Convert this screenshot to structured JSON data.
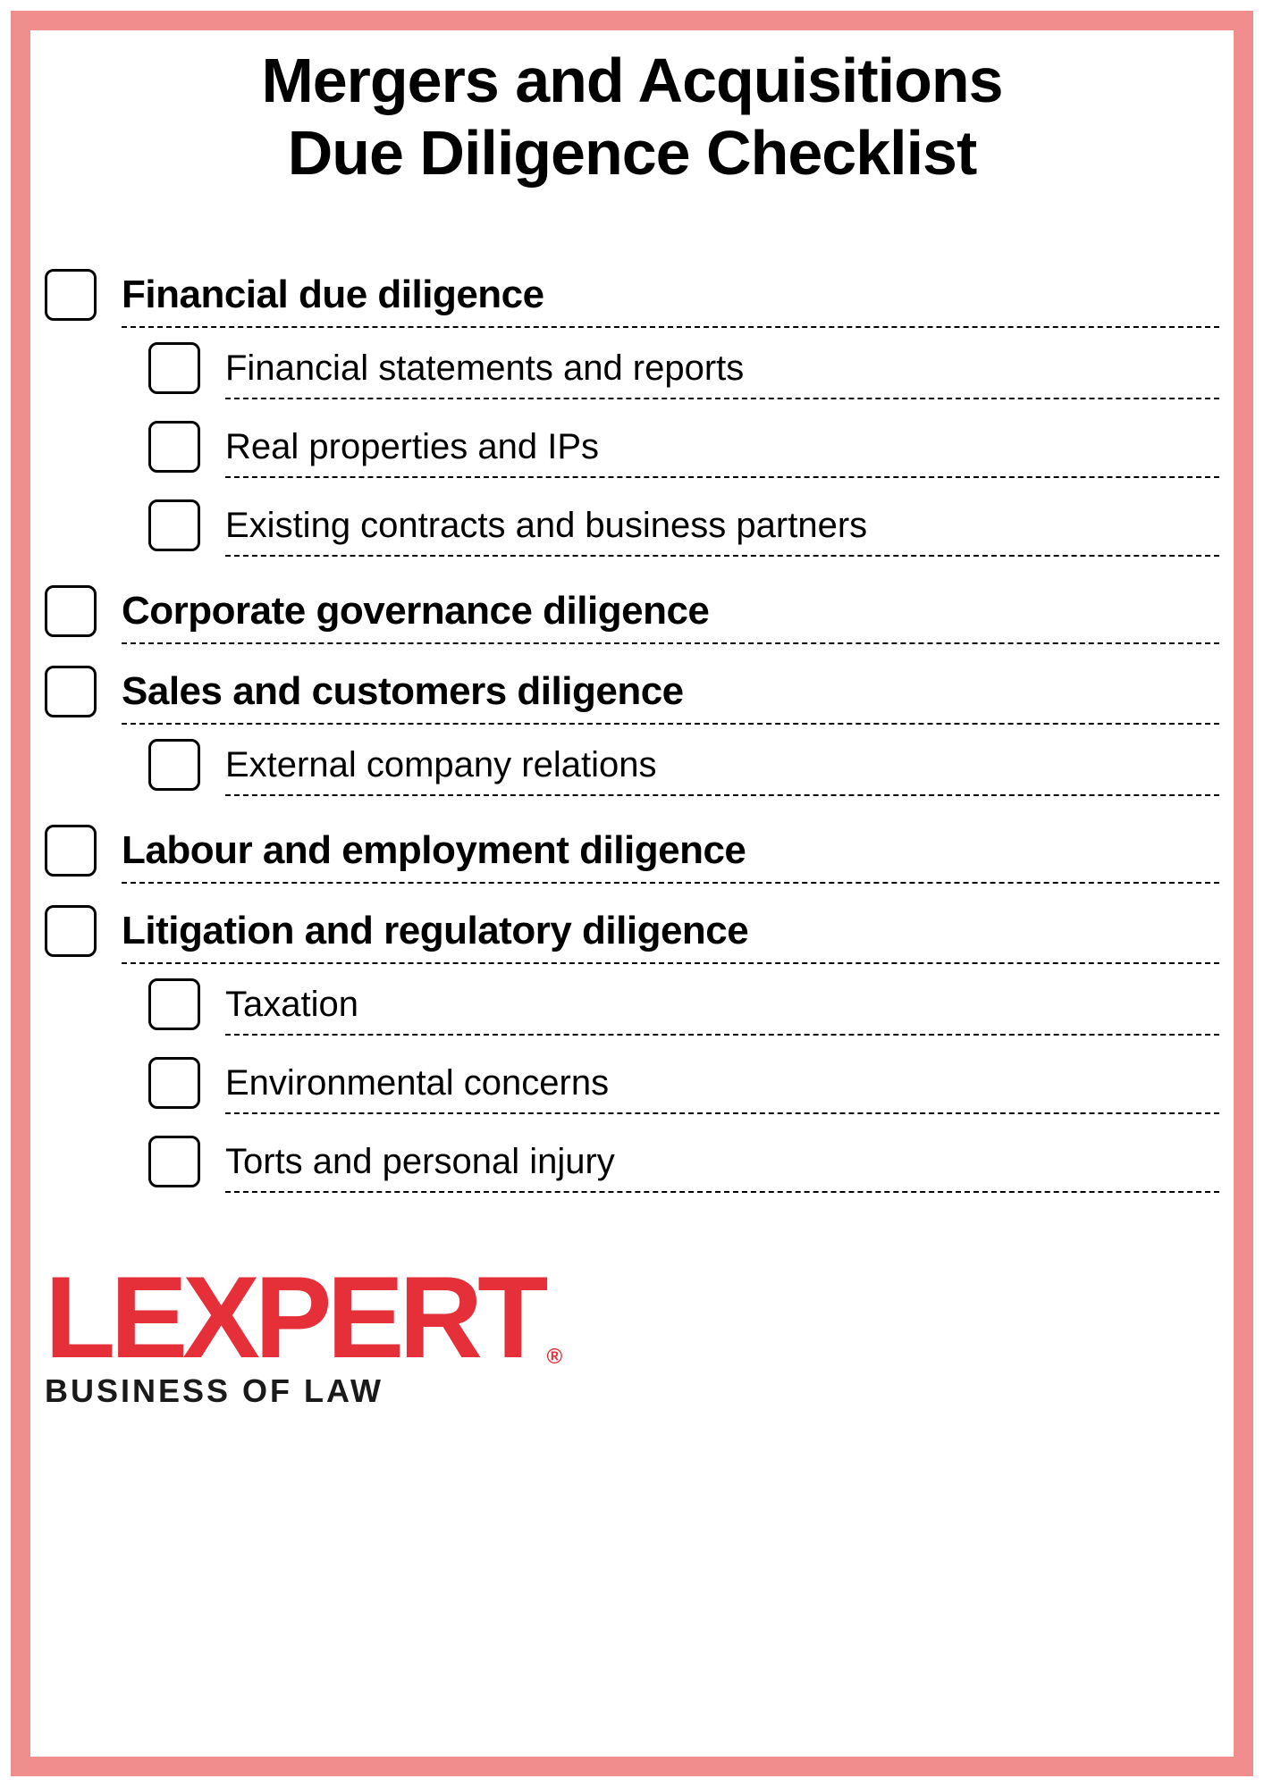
{
  "colors": {
    "border": "#f08e8e",
    "logo": "#e5303a",
    "text": "#000000"
  },
  "title_line1": "Mergers and Acquisitions",
  "title_line2": "Due Diligence Checklist",
  "title_fontsize": 70,
  "sections": [
    {
      "title": "Financial due diligence",
      "subs": [
        "Financial statements and reports",
        "Real properties and IPs",
        "Existing contracts and business partners"
      ]
    },
    {
      "title": "Corporate governance diligence",
      "subs": []
    },
    {
      "title": "Sales and customers diligence",
      "subs": [
        "External company relations"
      ]
    },
    {
      "title": "Labour and employment diligence",
      "subs": []
    },
    {
      "title": "Litigation and regulatory diligence",
      "subs": [
        "Taxation",
        "Environmental concerns",
        "Torts and personal injury"
      ]
    }
  ],
  "logo": {
    "text": "LEXPERT",
    "registered": "®",
    "tagline": "BUSINESS OF LAW",
    "fontsize": 130,
    "tagline_fontsize": 36
  }
}
